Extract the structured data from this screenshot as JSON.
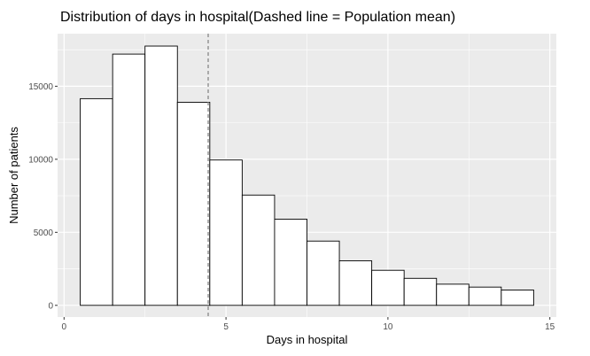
{
  "chart_data": {
    "type": "bar",
    "title": "Distribution of days in hospital(Dashed line = Population mean)",
    "xlabel": "Days in hospital",
    "ylabel": "Number of patients",
    "xlim": [
      -0.2,
      15.2
    ],
    "ylim": [
      -800,
      18600
    ],
    "x_ticks": [
      0,
      5,
      10,
      15
    ],
    "y_ticks": [
      0,
      5000,
      10000,
      15000
    ],
    "bin_width": 1,
    "bins": [
      1,
      2,
      3,
      4,
      5,
      6,
      7,
      8,
      9,
      10,
      11,
      12,
      13,
      14
    ],
    "values": [
      14150,
      17200,
      17750,
      13900,
      9950,
      7550,
      5900,
      4400,
      3050,
      2400,
      1850,
      1450,
      1250,
      1050
    ],
    "mean": 4.45,
    "grid": true,
    "legend": "none",
    "colors": {
      "panel_background": "#ebebeb",
      "grid": "#ffffff",
      "bar_fill": "#ffffff",
      "bar_outline": "#000000",
      "mean_line": "#7f7f7f"
    }
  }
}
